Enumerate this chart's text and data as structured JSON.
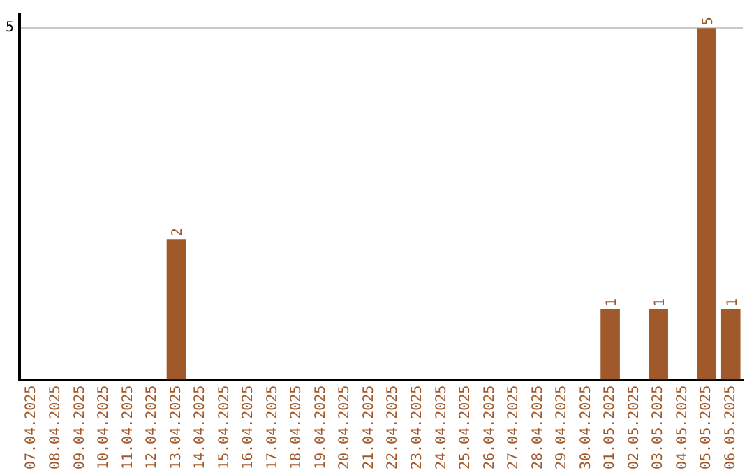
{
  "chart_data": {
    "type": "bar",
    "categories": [
      "07.04.2025",
      "08.04.2025",
      "09.04.2025",
      "10.04.2025",
      "11.04.2025",
      "12.04.2025",
      "13.04.2025",
      "14.04.2025",
      "15.04.2025",
      "16.04.2025",
      "17.04.2025",
      "18.04.2025",
      "19.04.2025",
      "20.04.2025",
      "21.04.2025",
      "22.04.2025",
      "23.04.2025",
      "24.04.2025",
      "25.04.2025",
      "26.04.2025",
      "27.04.2025",
      "28.04.2025",
      "29.04.2025",
      "30.04.2025",
      "01.05.2025",
      "02.05.2025",
      "03.05.2025",
      "04.05.2025",
      "05.05.2025",
      "06.05.2025"
    ],
    "values": [
      0,
      0,
      0,
      0,
      0,
      0,
      2,
      0,
      0,
      0,
      0,
      0,
      0,
      0,
      0,
      0,
      0,
      0,
      0,
      0,
      0,
      0,
      0,
      0,
      1,
      0,
      1,
      0,
      5,
      1
    ],
    "color": "#a0592a",
    "value_labels": [
      null,
      null,
      null,
      null,
      null,
      null,
      "2",
      null,
      null,
      null,
      null,
      null,
      null,
      null,
      null,
      null,
      null,
      null,
      null,
      null,
      null,
      null,
      null,
      null,
      "1",
      null,
      "1",
      null,
      "5",
      "1"
    ],
    "ylim": [
      0,
      5.2
    ],
    "yticks": [
      5
    ],
    "grid": "y",
    "legend": false
  }
}
